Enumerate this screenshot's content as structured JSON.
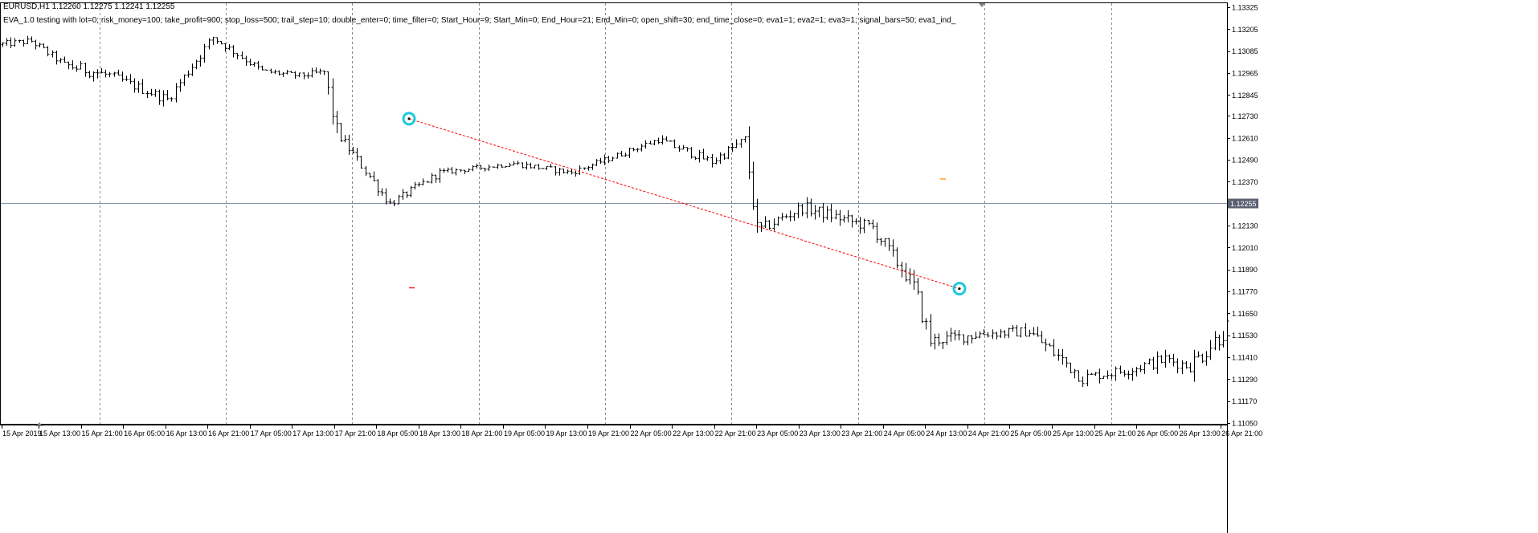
{
  "header": {
    "symbol_line": "EURUSD,H1  1.12260 1.12275 1.12241 1.12255",
    "expert_line": "EVA_1.0 testing with lot=0; risk_money=100; take_profit=900; stop_loss=500; trail_step=10; double_enter=0; time_filter=0; Start_Hour=9; Start_Min=0; End_Hour=21; End_Min=0; open_shift=30; end_time_close=0; eva1=1; eva2=1; eva3=1; signal_bars=50; eva1_ind_"
  },
  "chart_data": {
    "type": "ohlc",
    "symbol": "EURUSD",
    "timeframe": "H1",
    "ylim": [
      1.1105,
      1.13325
    ],
    "y_ticks": [
      "1.13325",
      "1.13205",
      "1.13085",
      "1.12965",
      "1.12845",
      "1.12730",
      "1.12610",
      "1.12490",
      "1.12370",
      "1.12255",
      "1.12130",
      "1.12010",
      "1.11890",
      "1.11770",
      "1.11650",
      "1.11530",
      "1.11410",
      "1.11290",
      "1.11170",
      "1.11050"
    ],
    "current_price": "1.12255",
    "x_ticks": [
      "15 Apr 2019",
      "15 Apr 13:00",
      "15 Apr 21:00",
      "16 Apr 05:00",
      "16 Apr 13:00",
      "16 Apr 21:00",
      "17 Apr 05:00",
      "17 Apr 13:00",
      "17 Apr 21:00",
      "18 Apr 05:00",
      "18 Apr 13:00",
      "18 Apr 21:00",
      "19 Apr 05:00",
      "19 Apr 13:00",
      "19 Apr 21:00",
      "22 Apr 05:00",
      "22 Apr 13:00",
      "22 Apr 21:00",
      "23 Apr 05:00",
      "23 Apr 13:00",
      "23 Apr 21:00",
      "24 Apr 05:00",
      "24 Apr 13:00",
      "24 Apr 21:00",
      "25 Apr 05:00",
      "25 Apr 13:00",
      "25 Apr 21:00",
      "26 Apr 05:00",
      "26 Apr 13:00",
      "26 Apr 21:00"
    ],
    "grid": "vertical dashed at day separators",
    "trades": [
      {
        "entry_time": "18 Apr 06:00",
        "entry_price": 1.12715,
        "exit_time": "24 Apr 18:00",
        "exit_price": 1.11785,
        "line_color": "#ff0000",
        "marker_color": "#1ec8dc"
      }
    ],
    "level_marks": [
      {
        "time": "18 Apr 06:00",
        "price": 1.1179,
        "color": "#ff2222"
      },
      {
        "time": "24 Apr 17:00",
        "price": 1.12385,
        "color": "#ffa020"
      }
    ],
    "segments": [
      {
        "bars": 8,
        "from": 1.1312,
        "to": 1.1314,
        "amp": 0.0004
      },
      {
        "bars": 8,
        "from": 1.1314,
        "to": 1.1301,
        "amp": 0.00045
      },
      {
        "bars": 11,
        "from": 1.1301,
        "to": 1.1295,
        "amp": 0.0007
      },
      {
        "bars": 14,
        "from": 1.1295,
        "to": 1.1282,
        "amp": 0.0006
      },
      {
        "bars": 11,
        "from": 1.1282,
        "to": 1.1316,
        "amp": 0.0006
      },
      {
        "bars": 12,
        "from": 1.1316,
        "to": 1.12975,
        "amp": 0.00045
      },
      {
        "bars": 9,
        "from": 1.12975,
        "to": 1.1295,
        "amp": 0.00035
      },
      {
        "bars": 6,
        "from": 1.1295,
        "to": 1.1297,
        "amp": 0.0004
      },
      {
        "bars": 3,
        "from": 1.1297,
        "to": 1.1264,
        "amp": 0.0012
      },
      {
        "bars": 13,
        "from": 1.1264,
        "to": 1.1225,
        "amp": 0.0006
      },
      {
        "bars": 12,
        "from": 1.1225,
        "to": 1.1242,
        "amp": 0.00045
      },
      {
        "bars": 18,
        "from": 1.1242,
        "to": 1.1247,
        "amp": 0.0003
      },
      {
        "bars": 14,
        "from": 1.1247,
        "to": 1.1242,
        "amp": 0.00035
      },
      {
        "bars": 21,
        "from": 1.1242,
        "to": 1.126,
        "amp": 0.00035
      },
      {
        "bars": 13,
        "from": 1.126,
        "to": 1.1248,
        "amp": 0.0005
      },
      {
        "bars": 8,
        "from": 1.1248,
        "to": 1.126,
        "amp": 0.0006
      },
      {
        "bars": 3,
        "from": 1.126,
        "to": 1.121,
        "amp": 0.0013
      },
      {
        "bars": 11,
        "from": 1.121,
        "to": 1.1223,
        "amp": 0.0007
      },
      {
        "bars": 17,
        "from": 1.1223,
        "to": 1.1212,
        "amp": 0.0007
      },
      {
        "bars": 10,
        "from": 1.1212,
        "to": 1.118,
        "amp": 0.0009
      },
      {
        "bars": 4,
        "from": 1.118,
        "to": 1.115,
        "amp": 0.0012
      },
      {
        "bars": 13,
        "from": 1.115,
        "to": 1.1154,
        "amp": 0.0007
      },
      {
        "bars": 11,
        "from": 1.1154,
        "to": 1.1155,
        "amp": 0.0006
      },
      {
        "bars": 13,
        "from": 1.1155,
        "to": 1.113,
        "amp": 0.0009
      },
      {
        "bars": 11,
        "from": 1.113,
        "to": 1.1134,
        "amp": 0.0006
      },
      {
        "bars": 9,
        "from": 1.1134,
        "to": 1.114,
        "amp": 0.0007
      },
      {
        "bars": 6,
        "from": 1.114,
        "to": 1.1136,
        "amp": 0.0007
      },
      {
        "bars": 9,
        "from": 1.1136,
        "to": 1.1157,
        "amp": 0.0012
      }
    ]
  },
  "colors": {
    "background": "#ffffff",
    "bars": "#000000",
    "grid": "#8a8a8a",
    "price_line": "#8896a8",
    "trade_line": "#ff0000",
    "trade_marker": "#1ec8dc",
    "price_label_bg": "#5a6070"
  }
}
